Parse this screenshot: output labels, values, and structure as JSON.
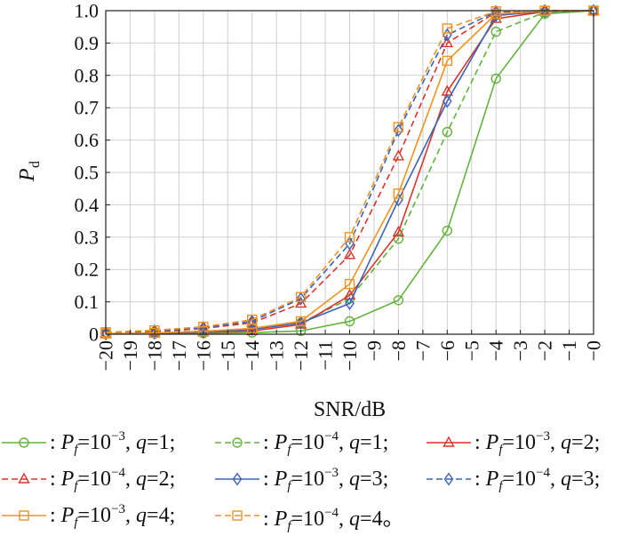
{
  "chart_data": {
    "type": "line",
    "title": "",
    "xlabel": "SNR/dB",
    "ylabel": "P",
    "ylabel_sub": "d",
    "xlim": [
      -20,
      0
    ],
    "ylim": [
      0,
      1
    ],
    "x_ticks": [
      "−20",
      "−19",
      "−18",
      "−17",
      "−16",
      "−15",
      "−14",
      "−13",
      "−12",
      "−11",
      "−10",
      "−9",
      "−8",
      "−7",
      "−6",
      "−5",
      "−4",
      "−3",
      "−2",
      "−1",
      "−0"
    ],
    "y_ticks": [
      "0",
      "0.1",
      "0.2",
      "0.3",
      "0.4",
      "0.5",
      "0.6",
      "0.7",
      "0.8",
      "0.9",
      "1.0"
    ],
    "grid": true,
    "x": [
      -20,
      -18,
      -16,
      -14,
      -12,
      -10,
      -8,
      -6,
      -4,
      -2,
      0
    ],
    "series": [
      {
        "name": ": P_f=10^-3, q=1;",
        "color": "#63b33c",
        "dash": false,
        "marker": "circle",
        "values": [
          0.001,
          0.002,
          0.003,
          0.005,
          0.01,
          0.04,
          0.105,
          0.32,
          0.79,
          0.99,
          1.0
        ]
      },
      {
        "name": ": P_f=10^-4, q=1;",
        "color": "#63b33c",
        "dash": true,
        "marker": "circle",
        "values": [
          0.003,
          0.006,
          0.01,
          0.015,
          0.035,
          0.11,
          0.295,
          0.625,
          0.935,
          0.995,
          1.0
        ]
      },
      {
        "name": ": P_f=10^-3, q=2;",
        "color": "#d9352b",
        "dash": false,
        "marker": "triangle",
        "values": [
          0.001,
          0.003,
          0.006,
          0.01,
          0.03,
          0.12,
          0.315,
          0.75,
          0.975,
          0.997,
          1.0
        ]
      },
      {
        "name": ": P_f=10^-4, q=2;",
        "color": "#d9352b",
        "dash": true,
        "marker": "triangle",
        "values": [
          0.004,
          0.008,
          0.018,
          0.035,
          0.095,
          0.245,
          0.55,
          0.9,
          0.995,
          1.0,
          1.0
        ]
      },
      {
        "name": ": P_f=10^-3, q=3;",
        "color": "#3b63b8",
        "dash": false,
        "marker": "diamond",
        "values": [
          0.001,
          0.003,
          0.007,
          0.015,
          0.035,
          0.095,
          0.415,
          0.72,
          0.985,
          0.998,
          1.0
        ]
      },
      {
        "name": ": P_f=10^-4, q=3;",
        "color": "#3b63b8",
        "dash": true,
        "marker": "diamond",
        "values": [
          0.005,
          0.01,
          0.02,
          0.04,
          0.11,
          0.28,
          0.63,
          0.925,
          0.997,
          1.0,
          1.0
        ]
      },
      {
        "name": ": P_f=10^-3, q=4;",
        "color": "#f0921e",
        "dash": false,
        "marker": "square",
        "values": [
          0.002,
          0.004,
          0.009,
          0.018,
          0.04,
          0.155,
          0.435,
          0.845,
          0.99,
          0.999,
          1.0
        ]
      },
      {
        "name": ": P_f=10^-4, q=4。",
        "color": "#f0921e",
        "dash": true,
        "marker": "square",
        "values": [
          0.006,
          0.012,
          0.023,
          0.045,
          0.115,
          0.3,
          0.64,
          0.945,
          0.998,
          1.0,
          1.0
        ]
      }
    ]
  },
  "legend": {
    "rows": [
      [
        {
          "series": 0,
          "pre": ": ",
          "p": "P",
          "sub": "f",
          "eq": "=10",
          "sup": "−3",
          "mid": ", ",
          "q": "q",
          "tail": "=1;"
        },
        {
          "series": 1,
          "pre": ": ",
          "p": "P",
          "sub": "f",
          "eq": "=10",
          "sup": "−4",
          "mid": ", ",
          "q": "q",
          "tail": "=1;"
        },
        {
          "series": 2,
          "pre": ": ",
          "p": "P",
          "sub": "f",
          "eq": "=10",
          "sup": "−3",
          "mid": ", ",
          "q": "q",
          "tail": "=2;"
        }
      ],
      [
        {
          "series": 3,
          "pre": ": ",
          "p": "P",
          "sub": "f",
          "eq": "=10",
          "sup": "−4",
          "mid": ", ",
          "q": "q",
          "tail": "=2;"
        },
        {
          "series": 4,
          "pre": ": ",
          "p": "P",
          "sub": "f",
          "eq": "=10",
          "sup": "−3",
          "mid": ", ",
          "q": "q",
          "tail": "=3;"
        },
        {
          "series": 5,
          "pre": ": ",
          "p": "P",
          "sub": "f",
          "eq": "=10",
          "sup": "−4",
          "mid": ", ",
          "q": "q",
          "tail": "=3;"
        }
      ],
      [
        {
          "series": 6,
          "pre": ": ",
          "p": "P",
          "sub": "f",
          "eq": "=10",
          "sup": "−3",
          "mid": ", ",
          "q": "q",
          "tail": "=4;"
        },
        {
          "series": 7,
          "pre": ": ",
          "p": "P",
          "sub": "f",
          "eq": "=10",
          "sup": "−4",
          "mid": ", ",
          "q": "q",
          "tail": "=4。"
        }
      ]
    ]
  }
}
